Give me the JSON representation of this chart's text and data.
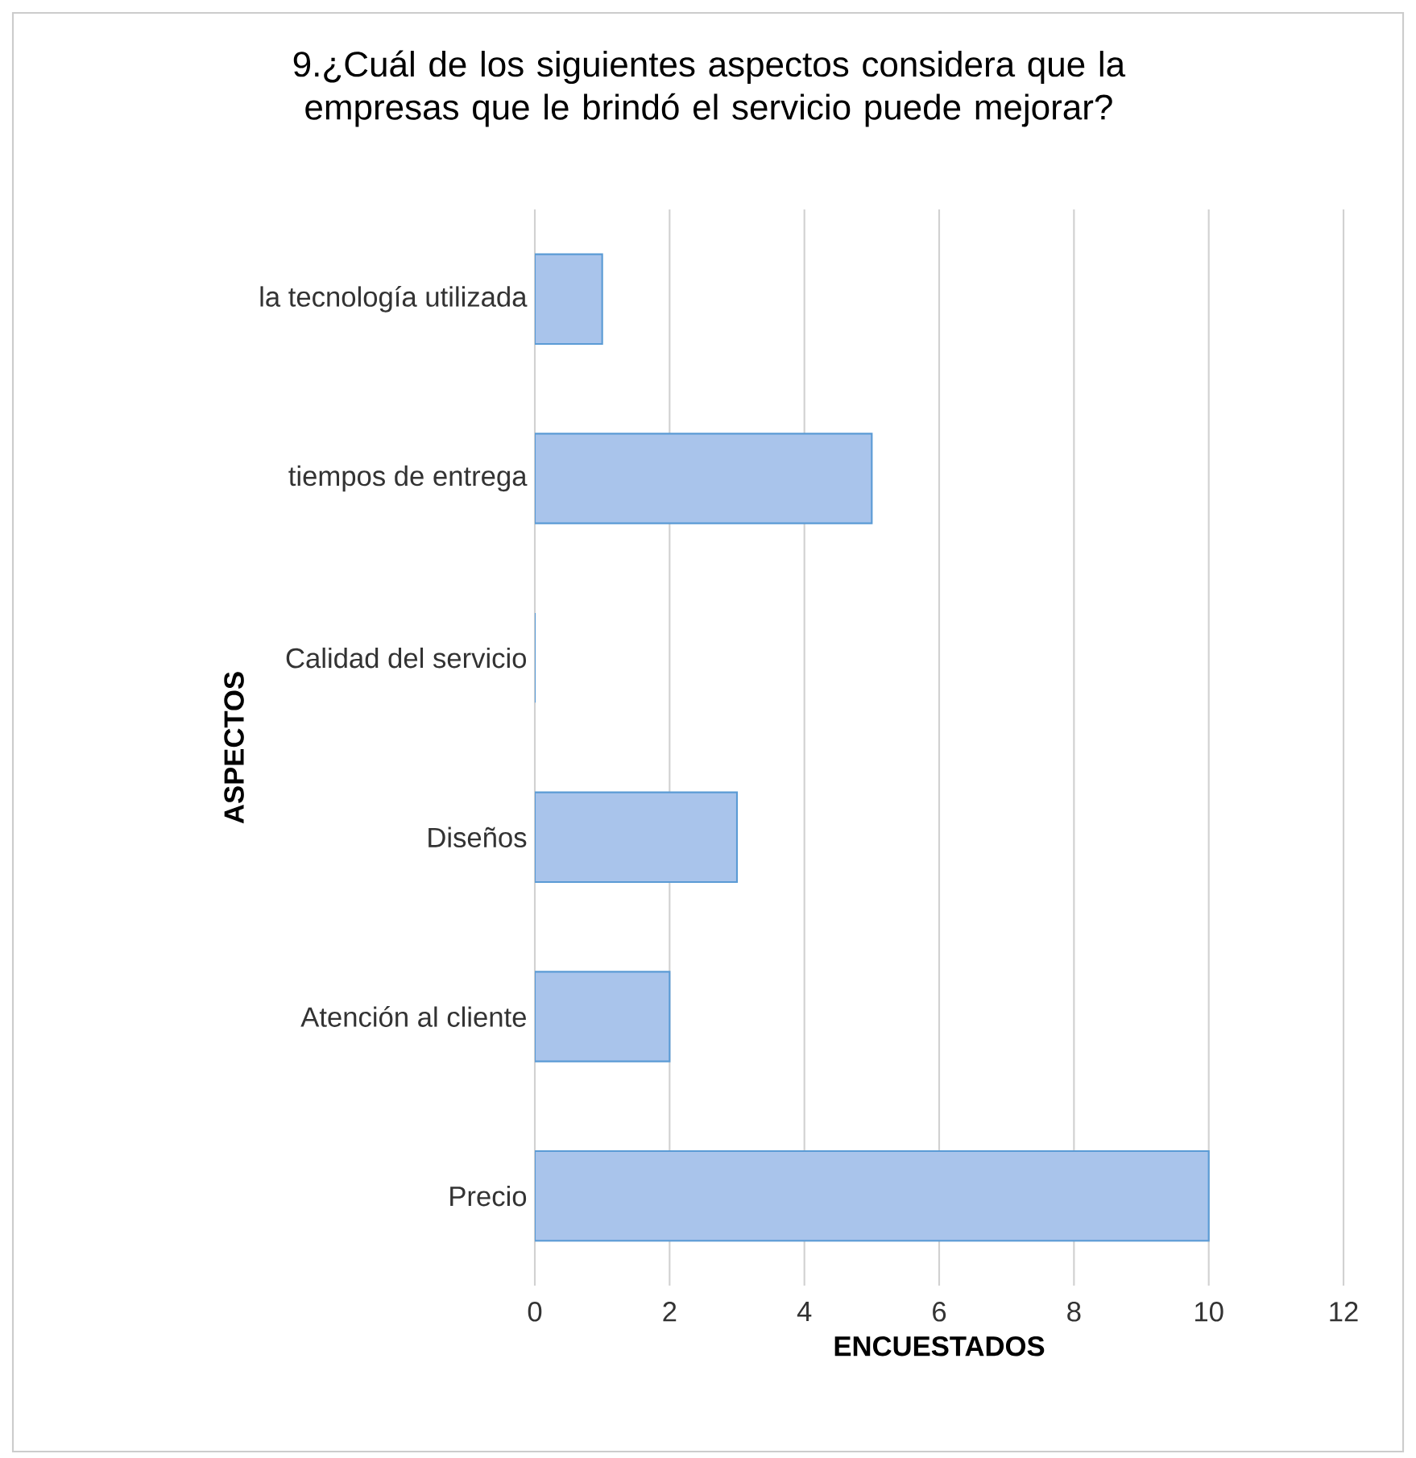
{
  "chart_data": {
    "type": "bar",
    "orientation": "horizontal",
    "title": "9.¿Cuál de los siguientes aspectos considera que la empresas que le brindó el servicio puede mejorar?",
    "xlabel": "ENCUESTADOS",
    "ylabel": "ASPECTOS",
    "categories": [
      "la tecnología utilizada",
      "tiempos de entrega",
      "Calidad del servicio",
      "Diseños",
      "Atención al cliente",
      "Precio"
    ],
    "values": [
      1,
      5,
      0,
      3,
      2,
      10
    ],
    "color": "#a9c4eb",
    "xlim": [
      0,
      12
    ],
    "xticks": [
      0,
      2,
      4,
      6,
      8,
      10,
      12
    ],
    "grid": "x"
  }
}
